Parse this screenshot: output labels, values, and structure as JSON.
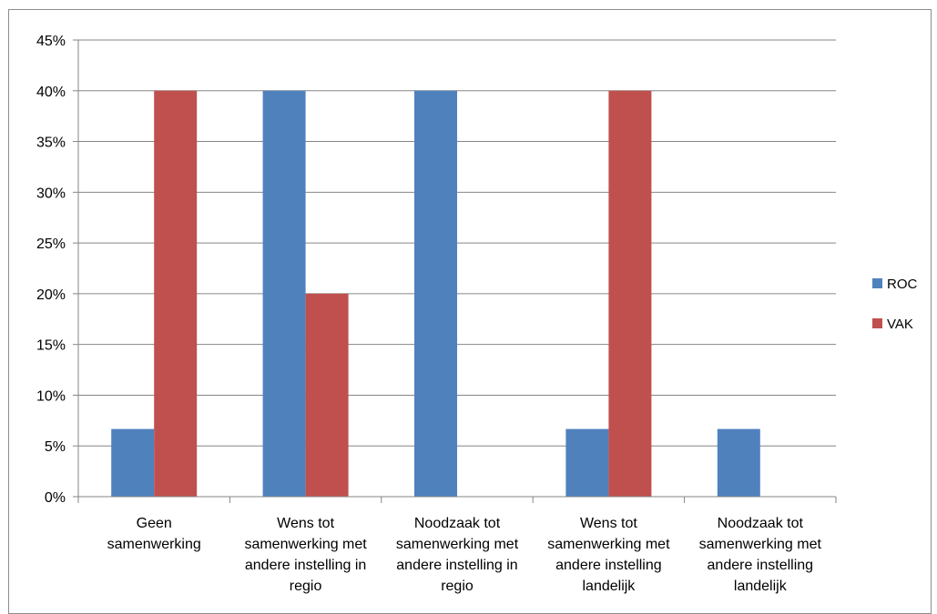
{
  "chart_data": {
    "type": "bar",
    "categories": [
      [
        "Geen",
        "samenwerking"
      ],
      [
        "Wens tot",
        "samenwerking met",
        "andere instelling in",
        "regio"
      ],
      [
        "Noodzaak tot",
        "samenwerking met",
        "andere instelling in",
        "regio"
      ],
      [
        "Wens tot",
        "samenwerking met",
        "andere instelling",
        "landelijk"
      ],
      [
        "Noodzaak tot",
        "samenwerking met",
        "andere instelling",
        "landelijk"
      ]
    ],
    "series": [
      {
        "name": "ROC",
        "color": "#4f81bd",
        "values": [
          0.0667,
          0.4,
          0.4,
          0.0667,
          0.0667
        ]
      },
      {
        "name": "VAK",
        "color": "#c0504d",
        "values": [
          0.4,
          0.2,
          0.0,
          0.4,
          0.0
        ]
      }
    ],
    "ylim": [
      0,
      0.45
    ],
    "yticks": [
      0,
      0.05,
      0.1,
      0.15,
      0.2,
      0.25,
      0.3,
      0.35,
      0.4,
      0.45
    ],
    "ytick_labels": [
      "0%",
      "5%",
      "10%",
      "15%",
      "20%",
      "25%",
      "30%",
      "35%",
      "40%",
      "45%"
    ],
    "grid": true,
    "legend_position": "right"
  }
}
